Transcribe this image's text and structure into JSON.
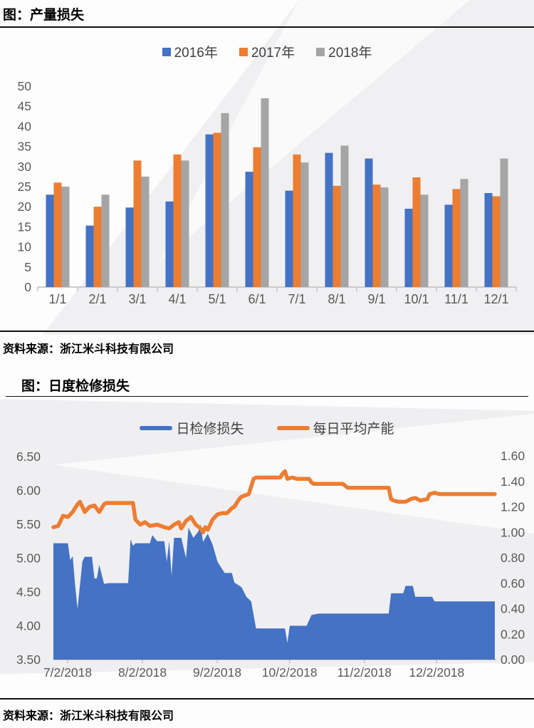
{
  "colors": {
    "blue": "#4472C4",
    "orange": "#ED7D31",
    "gray": "#A5A5A5",
    "axis_text": "#595959",
    "axis_line": "#BFBFBF"
  },
  "chart1": {
    "title": "图：产量损失",
    "source": "资料来源：浙江米斗科技有限公司",
    "legend": [
      "2016年",
      "2017年",
      "2018年"
    ]
  },
  "chart2": {
    "title": "图：日度检修损失",
    "source": "资料来源：浙江米斗科技有限公司",
    "legend": [
      "日检修损失",
      "每日平均产能"
    ]
  },
  "chart_data": [
    {
      "type": "bar",
      "title": "图：产量损失",
      "categories": [
        "1/1",
        "2/1",
        "3/1",
        "4/1",
        "5/1",
        "6/1",
        "7/1",
        "8/1",
        "9/1",
        "10/1",
        "11/1",
        "12/1"
      ],
      "series": [
        {
          "name": "2016年",
          "color": "#4472C4",
          "values": [
            23,
            15.3,
            19.8,
            21.3,
            38,
            28.7,
            24,
            33.4,
            32,
            19.5,
            20.5,
            23.4
          ]
        },
        {
          "name": "2017年",
          "color": "#ED7D31",
          "values": [
            26,
            20,
            31.5,
            33,
            38.4,
            34.8,
            33,
            25.2,
            25.5,
            27.3,
            24.4,
            22.6
          ]
        },
        {
          "name": "2018年",
          "color": "#A5A5A5",
          "values": [
            25,
            23,
            27.5,
            31.5,
            43.3,
            47,
            31,
            35.2,
            24.8,
            23,
            26.9,
            32
          ]
        }
      ],
      "ylim": [
        0,
        50
      ],
      "y_ticks": [
        0,
        5,
        10,
        15,
        20,
        25,
        30,
        35,
        40,
        45,
        50
      ],
      "grid": false,
      "legend_position": "top"
    },
    {
      "type": "area",
      "title": "图：日度检修损失",
      "x_axis": {
        "tick_labels": [
          "7/2/2018",
          "8/2/2018",
          "9/2/2018",
          "10/2/2018",
          "11/2/2018",
          "12/2/2018"
        ],
        "tick_days": [
          0,
          31,
          62,
          92,
          123,
          153
        ],
        "total_days": 183
      },
      "left_axis": {
        "min": 3.5,
        "max": 6.5,
        "tick_labels": [
          "3.50",
          "4.00",
          "4.50",
          "5.00",
          "5.50",
          "6.00",
          "6.50"
        ]
      },
      "right_axis": {
        "min": 0.0,
        "max": 1.6,
        "tick_labels": [
          "0.00",
          "0.20",
          "0.40",
          "0.60",
          "0.80",
          "1.00",
          "1.20",
          "1.40",
          "1.60"
        ]
      },
      "series": [
        {
          "name": "日检修损失",
          "type": "area",
          "axis": "left",
          "color": "#4472C4",
          "points": [
            [
              0,
              5.22
            ],
            [
              6,
              5.22
            ],
            [
              7,
              4.97
            ],
            [
              8,
              5.03
            ],
            [
              9,
              4.6
            ],
            [
              10,
              4.25
            ],
            [
              11,
              4.6
            ],
            [
              12,
              4.95
            ],
            [
              13,
              5.02
            ],
            [
              16,
              5.02
            ],
            [
              17,
              4.7
            ],
            [
              18,
              4.7
            ],
            [
              19,
              4.9
            ],
            [
              20,
              4.76
            ],
            [
              21,
              4.62
            ],
            [
              23,
              4.63
            ],
            [
              31,
              4.63
            ],
            [
              32,
              5.28
            ],
            [
              33,
              5.18
            ],
            [
              34,
              5.22
            ],
            [
              40,
              5.22
            ],
            [
              41,
              5.34
            ],
            [
              43,
              5.25
            ],
            [
              46,
              5.25
            ],
            [
              47,
              4.95
            ],
            [
              48,
              5.25
            ],
            [
              49,
              4.74
            ],
            [
              50,
              5.3
            ],
            [
              53,
              5.3
            ],
            [
              55,
              5.0
            ],
            [
              56,
              5.45
            ],
            [
              58,
              5.3
            ],
            [
              60,
              5.39
            ],
            [
              61,
              5.5
            ],
            [
              62,
              5.24
            ],
            [
              64,
              5.36
            ],
            [
              66,
              5.2
            ],
            [
              68,
              4.95
            ],
            [
              69,
              4.89
            ],
            [
              71,
              4.78
            ],
            [
              74,
              4.78
            ],
            [
              75,
              4.64
            ],
            [
              78,
              4.57
            ],
            [
              80,
              4.43
            ],
            [
              82,
              4.36
            ],
            [
              84,
              3.96
            ],
            [
              96,
              3.96
            ],
            [
              97,
              3.75
            ],
            [
              98,
              4.0
            ],
            [
              105,
              4.0
            ],
            [
              107,
              4.16
            ],
            [
              110,
              4.18
            ],
            [
              139,
              4.18
            ],
            [
              140,
              4.48
            ],
            [
              145,
              4.48
            ],
            [
              146,
              4.59
            ],
            [
              149,
              4.59
            ],
            [
              150,
              4.43
            ],
            [
              157,
              4.43
            ],
            [
              158,
              4.36
            ],
            [
              183,
              4.36
            ]
          ]
        },
        {
          "name": "每日平均产能",
          "type": "line",
          "axis": "right",
          "color": "#ED7D31",
          "points": [
            [
              0,
              1.04
            ],
            [
              2,
              1.05
            ],
            [
              4,
              1.13
            ],
            [
              6,
              1.12
            ],
            [
              8,
              1.16
            ],
            [
              10,
              1.22
            ],
            [
              11,
              1.24
            ],
            [
              13,
              1.16
            ],
            [
              15,
              1.2
            ],
            [
              17,
              1.21
            ],
            [
              19,
              1.16
            ],
            [
              21,
              1.22
            ],
            [
              22,
              1.23
            ],
            [
              33,
              1.23
            ],
            [
              34,
              1.1
            ],
            [
              36,
              1.06
            ],
            [
              38,
              1.08
            ],
            [
              40,
              1.05
            ],
            [
              43,
              1.06
            ],
            [
              46,
              1.04
            ],
            [
              48,
              1.03
            ],
            [
              50,
              1.06
            ],
            [
              52,
              1.08
            ],
            [
              53,
              1.03
            ],
            [
              55,
              1.09
            ],
            [
              57,
              1.12
            ],
            [
              59,
              1.06
            ],
            [
              61,
              1.03
            ],
            [
              62,
              1.0
            ],
            [
              63,
              1.04
            ],
            [
              64,
              1.02
            ],
            [
              66,
              1.1
            ],
            [
              68,
              1.14
            ],
            [
              70,
              1.15
            ],
            [
              72,
              1.15
            ],
            [
              74,
              1.19
            ],
            [
              75,
              1.2
            ],
            [
              77,
              1.26
            ],
            [
              78,
              1.28
            ],
            [
              81,
              1.3
            ],
            [
              82,
              1.36
            ],
            [
              83,
              1.42
            ],
            [
              84,
              1.43
            ],
            [
              94,
              1.43
            ],
            [
              95,
              1.46
            ],
            [
              96,
              1.48
            ],
            [
              97,
              1.42
            ],
            [
              99,
              1.43
            ],
            [
              101,
              1.42
            ],
            [
              106,
              1.42
            ],
            [
              107,
              1.39
            ],
            [
              108,
              1.38
            ],
            [
              120,
              1.38
            ],
            [
              122,
              1.35
            ],
            [
              139,
              1.35
            ],
            [
              140,
              1.26
            ],
            [
              141,
              1.25
            ],
            [
              143,
              1.24
            ],
            [
              146,
              1.24
            ],
            [
              148,
              1.26
            ],
            [
              150,
              1.27
            ],
            [
              152,
              1.25
            ],
            [
              155,
              1.26
            ],
            [
              156,
              1.3
            ],
            [
              158,
              1.31
            ],
            [
              160,
              1.3
            ],
            [
              183,
              1.3
            ]
          ]
        }
      ]
    }
  ]
}
